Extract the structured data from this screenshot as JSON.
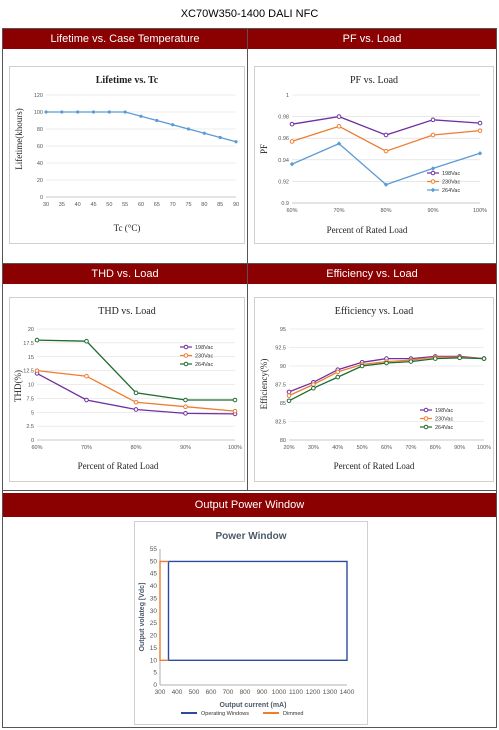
{
  "document_title": "XC70W350-1400 DALI NFC",
  "sections": {
    "lifetime": "Lifetime vs. Case Temperature",
    "pf": "PF vs. Load",
    "thd": "THD vs. Load",
    "efficiency": "Efficiency vs. Load",
    "power_window": "Output Power Window"
  },
  "colors": {
    "header_red": "#8b0000",
    "s198": "#7030a0",
    "s230": "#ed7d31",
    "s264": "#5b9bd5",
    "s264_dark": "#1e6b30",
    "operating": "#2e4a9e",
    "dimmed": "#ed7d31"
  },
  "chart_data": [
    {
      "id": "lifetime",
      "type": "line",
      "title": "Lifetime vs. Tc",
      "xlabel": "Tc (°C)",
      "ylabel": "Lifetime(khours)",
      "xlim": [
        30,
        90
      ],
      "ylim": [
        0,
        120
      ],
      "xticks": [
        "30",
        "35",
        "40",
        "45",
        "50",
        "55",
        "60",
        "65",
        "70",
        "75",
        "80",
        "85",
        "90"
      ],
      "yticks": [
        "0",
        "20",
        "40",
        "60",
        "80",
        "100",
        "120"
      ],
      "grid": true,
      "series": [
        {
          "x": [
            30,
            35,
            40,
            45,
            50,
            55,
            60,
            65,
            70,
            75,
            80,
            85,
            90
          ],
          "values": [
            100,
            100,
            100,
            100,
            100,
            100,
            95,
            90,
            85,
            80,
            75,
            70,
            65
          ],
          "color": "#5b9bd5"
        }
      ]
    },
    {
      "id": "pf",
      "type": "line",
      "title": "PF vs. Load",
      "xlabel": "Percent of Rated Load",
      "ylabel": "PF",
      "categories": [
        "60%",
        "70%",
        "80%",
        "90%",
        "100%"
      ],
      "ylim": [
        0.9,
        1.0
      ],
      "yticks": [
        "0.9",
        "0.92",
        "0.94",
        "0.96",
        "0.98",
        "1"
      ],
      "grid": true,
      "legend": "right",
      "series": [
        {
          "name": "198Vac",
          "values": [
            0.973,
            0.98,
            0.963,
            0.977,
            0.974
          ],
          "color": "#7030a0",
          "marker": "circle"
        },
        {
          "name": "230Vac",
          "values": [
            0.957,
            0.971,
            0.948,
            0.963,
            0.967
          ],
          "color": "#ed7d31",
          "marker": "circle"
        },
        {
          "name": "264Vac",
          "values": [
            0.936,
            0.955,
            0.917,
            0.932,
            0.946
          ],
          "color": "#5b9bd5",
          "marker": "diamond"
        }
      ]
    },
    {
      "id": "thd",
      "type": "line",
      "title": "THD vs. Load",
      "xlabel": "Percent of Rated Load",
      "ylabel": "THD(%)",
      "categories": [
        "60%",
        "70%",
        "80%",
        "90%",
        "100%"
      ],
      "ylim": [
        0,
        20
      ],
      "yticks": [
        "0",
        "2.5",
        "5",
        "7.5",
        "10",
        "12.5",
        "15",
        "17.5",
        "20"
      ],
      "grid": true,
      "legend": "right",
      "series": [
        {
          "name": "198Vac",
          "values": [
            12.0,
            7.2,
            5.5,
            4.8,
            4.7
          ],
          "color": "#7030a0",
          "marker": "circle"
        },
        {
          "name": "230Vac",
          "values": [
            12.5,
            11.5,
            6.8,
            6.0,
            5.2
          ],
          "color": "#ed7d31",
          "marker": "circle"
        },
        {
          "name": "264Vac",
          "values": [
            18.0,
            17.8,
            8.5,
            7.2,
            7.2
          ],
          "color": "#1e6b30",
          "marker": "circle"
        }
      ]
    },
    {
      "id": "efficiency",
      "type": "line",
      "title": "Efficiency vs. Load",
      "xlabel": "Percent of Rated Load",
      "ylabel": "Efficiency(%)",
      "categories": [
        "20%",
        "30%",
        "40%",
        "50%",
        "60%",
        "70%",
        "80%",
        "90%",
        "100%"
      ],
      "ylim": [
        80,
        95
      ],
      "yticks": [
        "80",
        "82.5",
        "85",
        "87.5",
        "90",
        "92.5",
        "95"
      ],
      "grid": true,
      "legend": "bottom-right",
      "series": [
        {
          "name": "198Vac",
          "values": [
            86.5,
            87.8,
            89.5,
            90.5,
            91.0,
            91.0,
            91.3,
            91.3,
            91.0
          ],
          "color": "#7030a0",
          "marker": "circle"
        },
        {
          "name": "230Vac",
          "values": [
            86.0,
            87.5,
            89.2,
            90.2,
            90.6,
            90.8,
            91.2,
            91.2,
            91.0
          ],
          "color": "#ed7d31",
          "marker": "circle"
        },
        {
          "name": "264Vac",
          "values": [
            85.3,
            87.0,
            88.5,
            90.0,
            90.4,
            90.6,
            91.0,
            91.1,
            91.0
          ],
          "color": "#1e6b30",
          "marker": "circle"
        }
      ]
    },
    {
      "id": "power_window",
      "type": "line",
      "title": "Power Window",
      "xlabel": "Output current (mA)",
      "ylabel": "Output volateg [Vdc]",
      "xlim": [
        300,
        1400
      ],
      "ylim": [
        0,
        55
      ],
      "xticks": [
        "300",
        "400",
        "500",
        "600",
        "700",
        "800",
        "900",
        "1000",
        "1100",
        "1200",
        "1300",
        "1400"
      ],
      "yticks": [
        "0",
        "5",
        "10",
        "15",
        "20",
        "25",
        "30",
        "35",
        "40",
        "45",
        "50",
        "55"
      ],
      "grid": false,
      "legend": "bottom",
      "series": [
        {
          "name": "Operating Windows",
          "color": "#2e4a9e",
          "x": [
            350,
            1400,
            1400,
            350,
            350
          ],
          "values": [
            50,
            50,
            10,
            10,
            50
          ]
        },
        {
          "name": "Dimmed",
          "color": "#ed7d31",
          "x": [
            350,
            300,
            300,
            350
          ],
          "values": [
            50,
            50,
            10,
            10
          ]
        }
      ]
    }
  ]
}
